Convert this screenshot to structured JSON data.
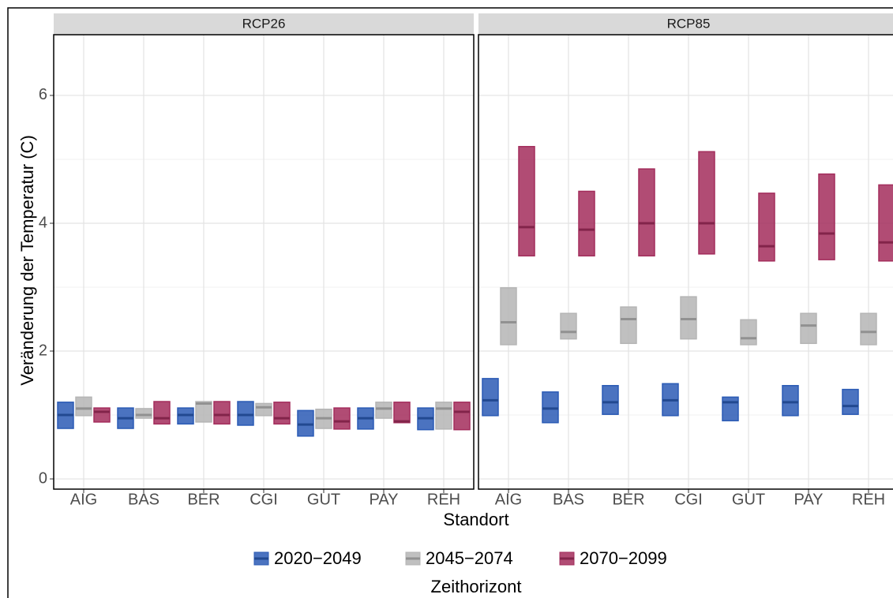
{
  "chart_data": {
    "type": "crossbar",
    "y_label": "Veränderung der Temperatur (C)",
    "x_label": "Standort",
    "legend_title": "Zeithorizont",
    "categories": [
      "AIG",
      "BAS",
      "BER",
      "CGI",
      "GUT",
      "PAY",
      "REH"
    ],
    "ylim": [
      -0.16,
      6.95
    ],
    "yticks": [
      0,
      2,
      4,
      6
    ],
    "minor_yticks": [
      1,
      3,
      5
    ],
    "grid": true,
    "legend": "bottom",
    "series": [
      {
        "name": "2020−2049",
        "color": "#2b5bb5"
      },
      {
        "name": "2045−2074",
        "color": "#b5b5b5"
      },
      {
        "name": "2070−2099",
        "color": "#a32d5c"
      }
    ],
    "facets": [
      {
        "title": "RCP26",
        "series": [
          {
            "low": [
              0.79,
              0.79,
              0.86,
              0.84,
              0.67,
              0.78,
              0.77
            ],
            "values": [
              1.0,
              0.95,
              1.0,
              1.0,
              0.85,
              0.95,
              0.95
            ],
            "high": [
              1.2,
              1.11,
              1.11,
              1.21,
              1.07,
              1.11,
              1.11
            ]
          },
          {
            "low": [
              0.99,
              0.95,
              0.89,
              0.99,
              0.79,
              0.95,
              0.78
            ],
            "values": [
              1.1,
              1.0,
              1.18,
              1.12,
              0.95,
              1.1,
              1.1
            ],
            "high": [
              1.28,
              1.1,
              1.21,
              1.18,
              1.09,
              1.2,
              1.2
            ]
          },
          {
            "low": [
              0.89,
              0.86,
              0.86,
              0.86,
              0.78,
              0.88,
              0.77
            ],
            "values": [
              1.05,
              0.95,
              1.0,
              0.95,
              0.9,
              0.9,
              1.05
            ],
            "high": [
              1.11,
              1.21,
              1.21,
              1.2,
              1.11,
              1.2,
              1.2
            ]
          }
        ]
      },
      {
        "title": "RCP85",
        "series": [
          {
            "low": [
              0.99,
              0.88,
              1.01,
              0.99,
              0.91,
              0.99,
              1.01
            ],
            "values": [
              1.23,
              1.1,
              1.2,
              1.23,
              1.2,
              1.2,
              1.14
            ],
            "high": [
              1.57,
              1.36,
              1.46,
              1.49,
              1.28,
              1.46,
              1.4
            ]
          },
          {
            "low": [
              2.1,
              2.19,
              2.12,
              2.19,
              2.1,
              2.12,
              2.1
            ],
            "values": [
              2.45,
              2.3,
              2.5,
              2.5,
              2.2,
              2.4,
              2.3
            ],
            "high": [
              2.99,
              2.59,
              2.69,
              2.85,
              2.49,
              2.59,
              2.59
            ]
          },
          {
            "low": [
              3.49,
              3.49,
              3.49,
              3.52,
              3.41,
              3.43,
              3.41
            ],
            "values": [
              3.94,
              3.9,
              4.0,
              4.0,
              3.64,
              3.84,
              3.7
            ],
            "high": [
              5.2,
              4.5,
              4.85,
              5.12,
              4.47,
              4.77,
              4.6
            ]
          }
        ]
      }
    ]
  }
}
